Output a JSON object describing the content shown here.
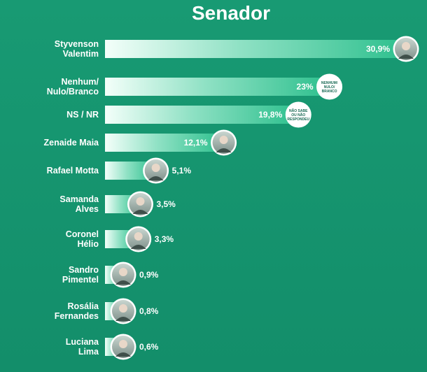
{
  "chart_data": {
    "type": "bar",
    "orientation": "horizontal",
    "title": "Senador",
    "categories": [
      "Styvenson Valentim",
      "Nenhum/ Nulo/Branco",
      "NS / NR",
      "Zenaide Maia",
      "Rafael Motta",
      "Samanda Alves",
      "Coronel Hélio",
      "Sandro Pimentel",
      "Rosália Fernandes",
      "Luciana Lima"
    ],
    "category_lines": [
      [
        "Styvenson",
        "Valentim"
      ],
      [
        "Nenhum/",
        "Nulo/Branco"
      ],
      [
        "NS / NR"
      ],
      [
        "Zenaide Maia"
      ],
      [
        "Rafael Motta"
      ],
      [
        "Samanda",
        "Alves"
      ],
      [
        "Coronel",
        "Hélio"
      ],
      [
        "Sandro",
        "Pimentel"
      ],
      [
        "Rosália",
        "Fernandes"
      ],
      [
        "Luciana",
        "Lima"
      ]
    ],
    "values": [
      30.9,
      23,
      19.8,
      12.1,
      5.1,
      3.5,
      3.3,
      0.9,
      0.8,
      0.6
    ],
    "value_labels": [
      "30,9%",
      "23%",
      "19,8%",
      "12,1%",
      "5,1%",
      "3,5%",
      "3,3%",
      "0,9%",
      "0,8%",
      "0,6%"
    ],
    "badges": [
      null,
      [
        "NENHUM/",
        "NULO/",
        "BRANCO"
      ],
      [
        "NÃO SABE",
        "OU NÃO",
        "RESPONDEU"
      ],
      null,
      null,
      null,
      null,
      null,
      null,
      null
    ],
    "has_photo": [
      true,
      false,
      false,
      true,
      true,
      true,
      true,
      true,
      true,
      true
    ],
    "grid": false,
    "legend": "none"
  },
  "colors": {
    "background": "#16936e",
    "bar_start": "#ffffff",
    "bar_end": "#2fbf8e",
    "text": "#ffffff",
    "value_on_bar": "#ffffff",
    "value_outside": "#ffffff"
  }
}
